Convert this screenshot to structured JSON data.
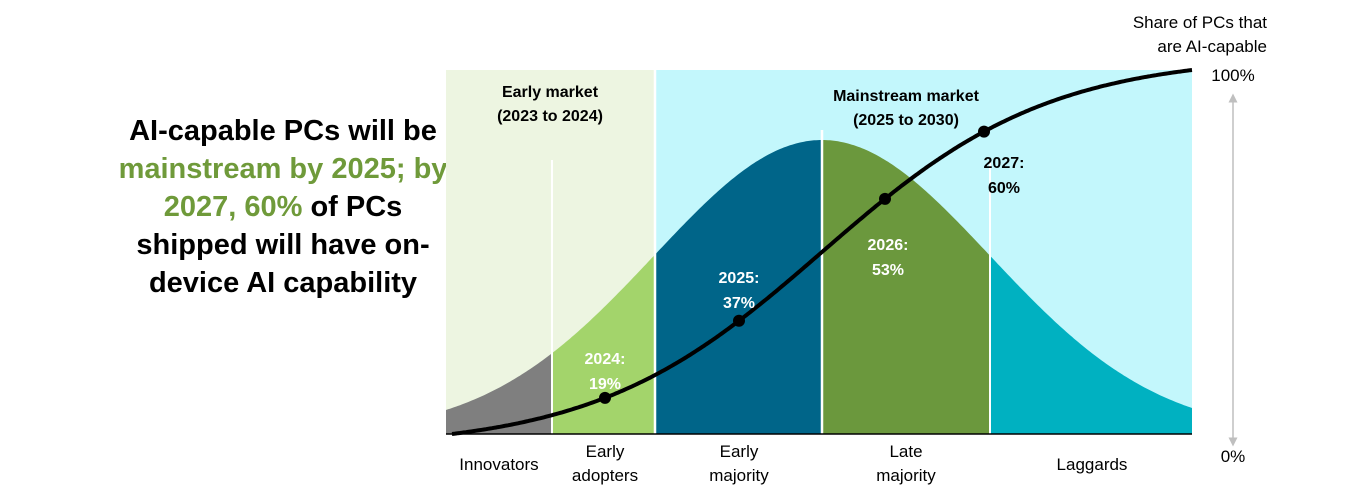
{
  "headline": {
    "part1": "AI-capable PCs will be ",
    "highlight1": "mainstream by 2025; by 2027,",
    "part2": " ",
    "highlight2": "60%",
    "part3": " of PCs shipped will have on-device AI capability",
    "highlight_color": "#6f9a3a"
  },
  "chart_data": {
    "type": "area",
    "title": "",
    "y_axis": {
      "label_line1": "Share of PCs that",
      "label_line2": "are AI-capable",
      "top_label": "100%",
      "bottom_label": "0%",
      "ylim": [
        0,
        100
      ]
    },
    "regions": [
      {
        "label_line1": "Early market",
        "label_line2": "(2023 to 2024)",
        "color": "#edf5e1"
      },
      {
        "label_line1": "Mainstream market",
        "label_line2": "(2025 to 2030)",
        "color": "#c3f7fc"
      }
    ],
    "segments": [
      {
        "label_line1": "Innovators",
        "label_line2": "",
        "color": "#7f7f7f"
      },
      {
        "label_line1": "Early",
        "label_line2": "adopters",
        "color": "#a3d46b"
      },
      {
        "label_line1": "Early",
        "label_line2": "majority",
        "color": "#006589"
      },
      {
        "label_line1": "Late",
        "label_line2": "majority",
        "color": "#6b983d"
      },
      {
        "label_line1": "Laggards",
        "label_line2": "",
        "color": "#00b1c1"
      }
    ],
    "adoption_curve": {
      "points": [
        {
          "year": "2024:",
          "value": 19,
          "label": "19%"
        },
        {
          "year": "2025:",
          "value": 37,
          "label": "37%"
        },
        {
          "year": "2026:",
          "value": 53,
          "label": "53%"
        },
        {
          "year": "2027:",
          "value": 60,
          "label": "60%"
        }
      ]
    }
  }
}
